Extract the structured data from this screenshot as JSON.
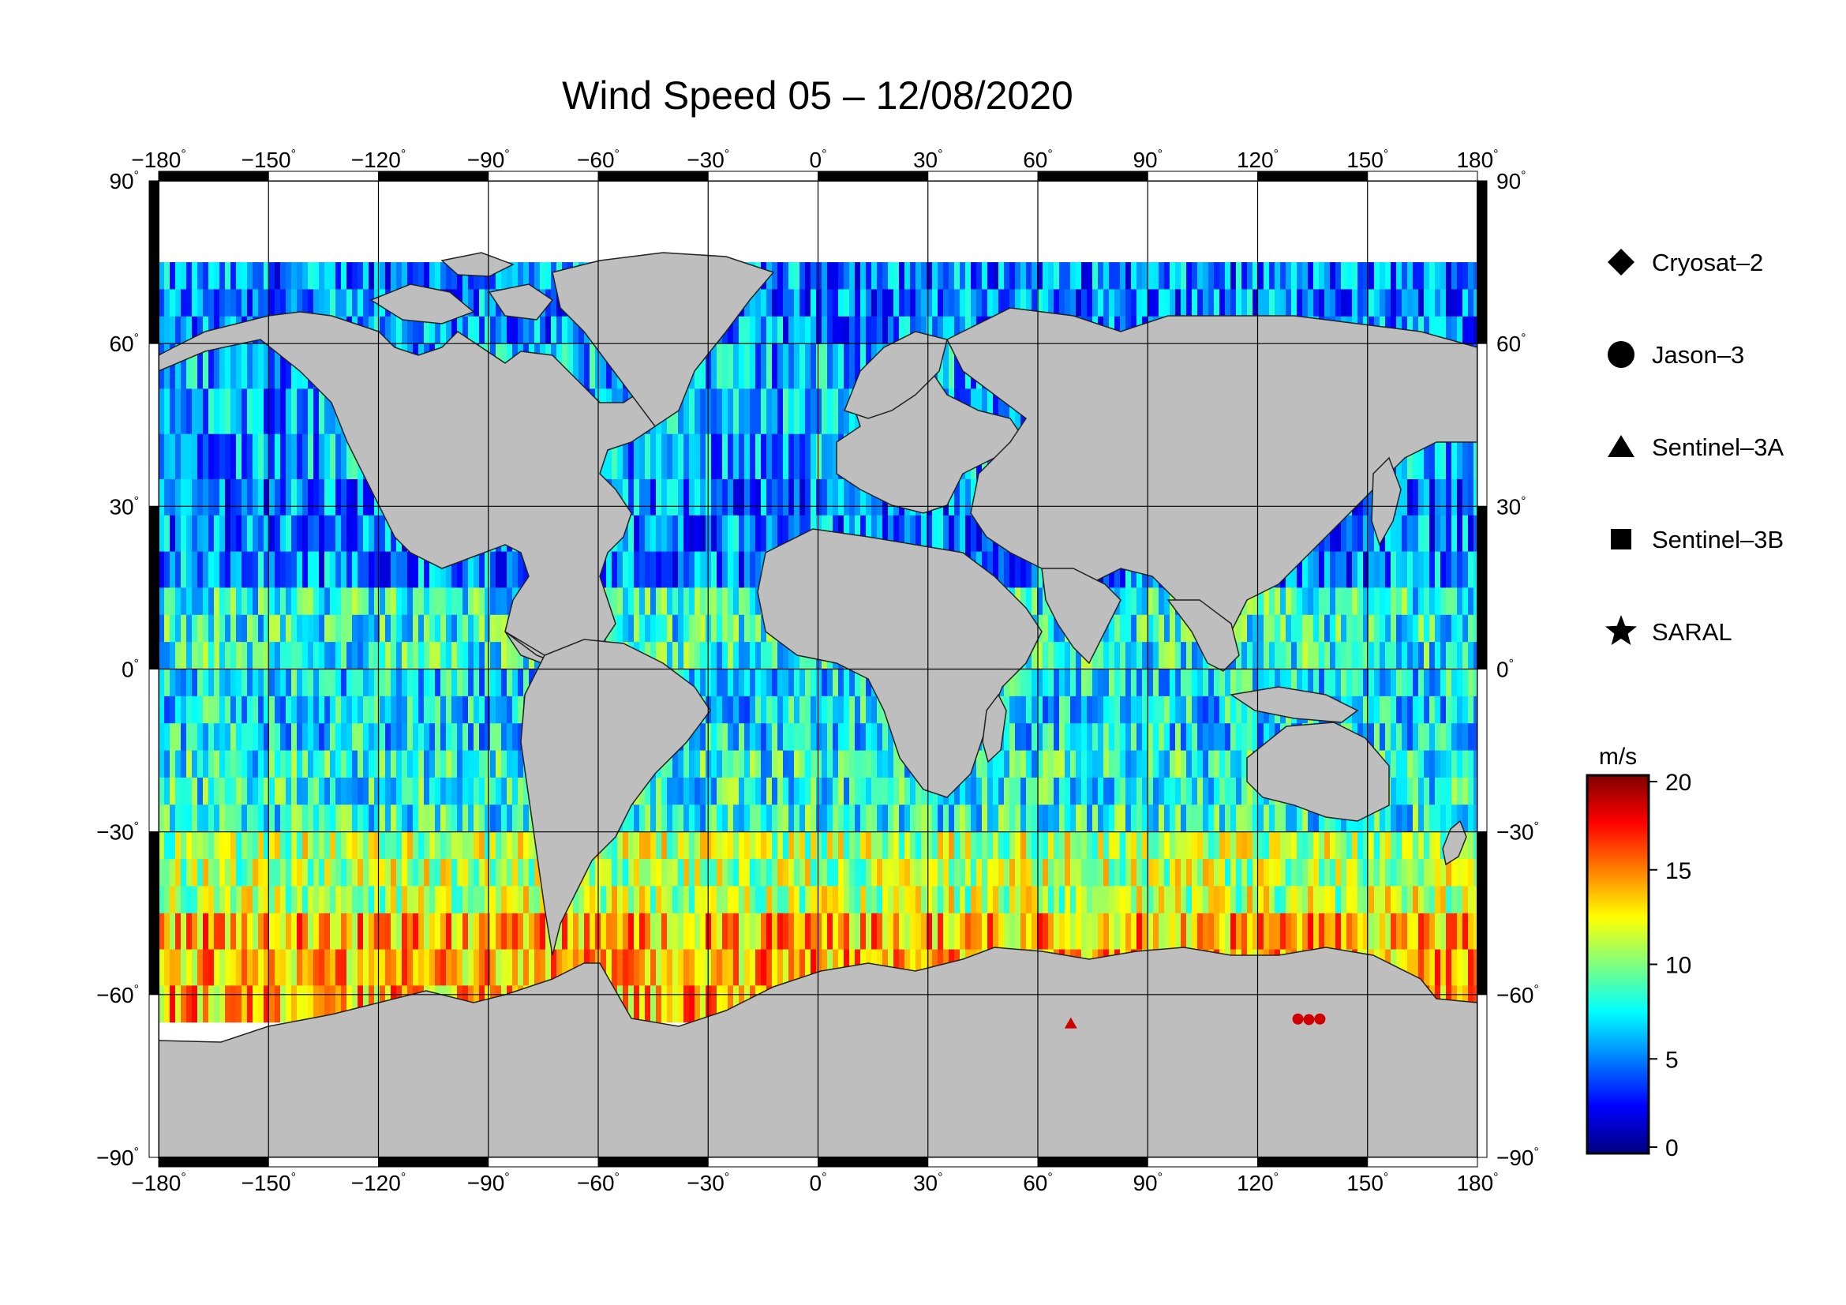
{
  "title": "Wind Speed 05 – 12/08/2020",
  "axes": {
    "lon_ticks": [
      -180,
      -150,
      -120,
      -90,
      -60,
      -30,
      0,
      30,
      60,
      90,
      120,
      150,
      180
    ],
    "lat_ticks": [
      90,
      60,
      30,
      0,
      -30,
      -60,
      -90
    ],
    "lon_range": [
      -180,
      180
    ],
    "lat_range": [
      -90,
      90
    ],
    "degree_mark": "°",
    "grid": true
  },
  "legend": {
    "placement": "right",
    "items": [
      {
        "label": "Cryosat–2",
        "symbol": "diamond"
      },
      {
        "label": "Jason–3",
        "symbol": "circle"
      },
      {
        "label": "Sentinel–3A",
        "symbol": "triangle"
      },
      {
        "label": "Sentinel–3B",
        "symbol": "square"
      },
      {
        "label": "SARAL",
        "symbol": "star"
      }
    ]
  },
  "colorbar": {
    "unit": "m/s",
    "min": 0,
    "max": 20,
    "ticks": [
      20,
      15,
      10,
      5,
      0
    ],
    "colors": [
      "#00007f",
      "#0000ff",
      "#007fff",
      "#00ffff",
      "#7fff7f",
      "#ffff00",
      "#ff7f00",
      "#ff0000",
      "#7f0000"
    ]
  },
  "colors": {
    "land": "#bebebe",
    "ice": "#ffffff",
    "frame": "#000000",
    "grid": "#000000"
  },
  "chart_data": {
    "type": "heatmap",
    "description_of_values": "along-track altimeter wind speed, m/s",
    "zones": [
      {
        "lat_band": [
          60,
          75
        ],
        "wind_ms": 5
      },
      {
        "lat_band": [
          35,
          60
        ],
        "wind_ms": 6
      },
      {
        "lat_band": [
          15,
          35
        ],
        "wind_ms": 5
      },
      {
        "lat_band": [
          0,
          15
        ],
        "wind_ms": 8
      },
      {
        "lat_band": [
          -15,
          0
        ],
        "wind_ms": 7
      },
      {
        "lat_band": [
          -30,
          -15
        ],
        "wind_ms": 8
      },
      {
        "lat_band": [
          -45,
          -30
        ],
        "wind_ms": 11
      },
      {
        "lat_band": [
          -65,
          -45
        ],
        "wind_ms": 14
      }
    ]
  }
}
